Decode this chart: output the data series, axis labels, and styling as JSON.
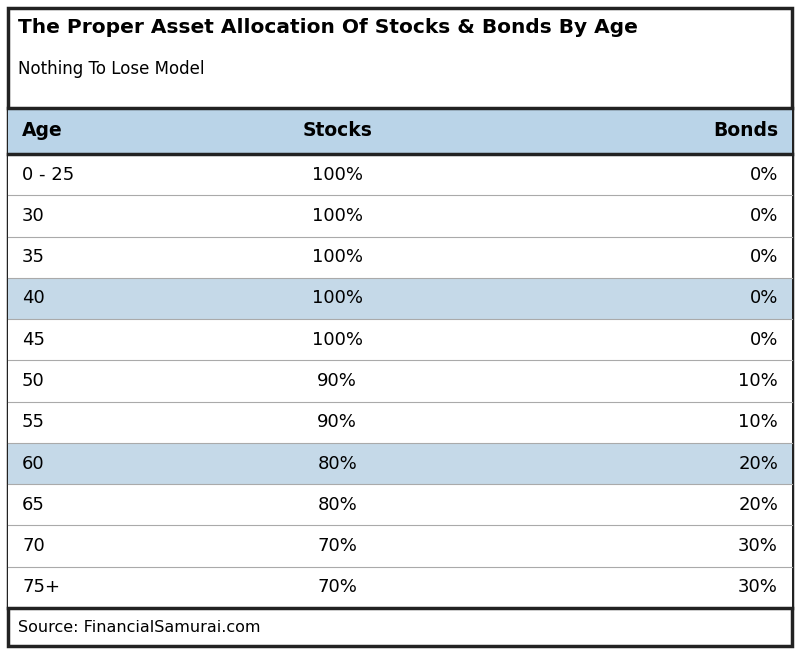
{
  "title": "The Proper Asset Allocation Of Stocks & Bonds By Age",
  "subtitle": "Nothing To Lose Model",
  "columns": [
    "Age",
    "Stocks",
    "Bonds"
  ],
  "rows": [
    [
      "0 - 25",
      "100%",
      "0%"
    ],
    [
      "30",
      "100%",
      "0%"
    ],
    [
      "35",
      "100%",
      "0%"
    ],
    [
      "40",
      "100%",
      "0%"
    ],
    [
      "45",
      "100%",
      "0%"
    ],
    [
      "50",
      "90%",
      "10%"
    ],
    [
      "55",
      "90%",
      "10%"
    ],
    [
      "60",
      "80%",
      "20%"
    ],
    [
      "65",
      "80%",
      "20%"
    ],
    [
      "70",
      "70%",
      "30%"
    ],
    [
      "75+",
      "70%",
      "30%"
    ]
  ],
  "highlighted_rows": [
    3,
    7
  ],
  "header_bg": "#bad4e8",
  "highlight_bg": "#c5d9e8",
  "row_bg": "#ffffff",
  "border_color": "#222222",
  "text_color": "#000000",
  "title_fontsize": 14.5,
  "subtitle_fontsize": 12,
  "header_fontsize": 13.5,
  "cell_fontsize": 13,
  "source_text": "Source: FinancialSamurai.com",
  "source_fontsize": 11.5,
  "fig_width": 8.0,
  "fig_height": 6.54,
  "dpi": 100
}
